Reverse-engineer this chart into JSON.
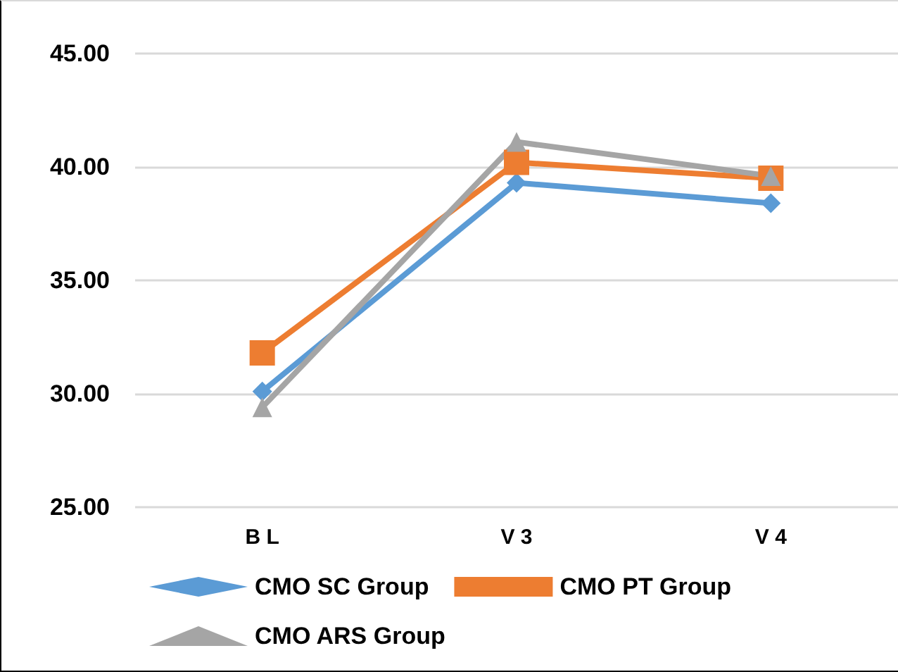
{
  "chart_data": {
    "type": "line",
    "categories": [
      "B L",
      "V 3",
      "V 4"
    ],
    "series": [
      {
        "name": "CMO SC Group",
        "color": "#5b9bd5",
        "marker": "diamond",
        "values": [
          30.1,
          39.3,
          38.4
        ]
      },
      {
        "name": "CMO PT Group",
        "color": "#ed7d31",
        "marker": "square",
        "values": [
          31.8,
          40.2,
          39.5
        ]
      },
      {
        "name": "CMO ARS Group",
        "color": "#a5a5a5",
        "marker": "triangle",
        "values": [
          29.4,
          41.1,
          39.6
        ]
      }
    ],
    "ylim": [
      25,
      45
    ],
    "yticks": [
      {
        "value": 25,
        "label": "25.00"
      },
      {
        "value": 30,
        "label": "30.00"
      },
      {
        "value": 35,
        "label": "35.00"
      },
      {
        "value": 40,
        "label": "40.00"
      },
      {
        "value": 45,
        "label": "45.00"
      }
    ],
    "grid": "y",
    "legend": "bottom",
    "line_style": "solid"
  }
}
